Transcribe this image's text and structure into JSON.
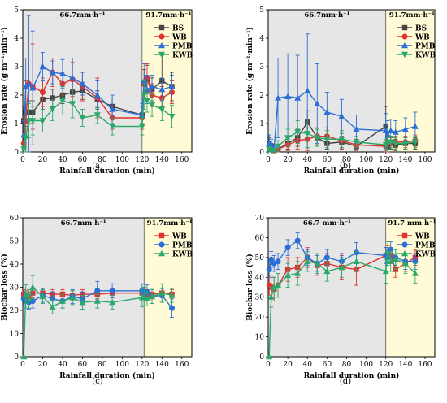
{
  "colors": {
    "BS": "#444444",
    "WB": "#e0322f",
    "PMB": "#2b6fd6",
    "KWB": "#2aa86a",
    "shade1": "#e6e6e6",
    "shade2": "#fffbd6"
  },
  "chart_data": [
    {
      "panel_label": "(a)",
      "type": "line",
      "xlabel": "Rainfall duration (min)",
      "ylabel": "Erosion rate (g·m⁻²·min⁻¹)",
      "xlim": [
        0,
        170
      ],
      "ylim": [
        0,
        5
      ],
      "xticks": [
        0,
        20,
        40,
        60,
        80,
        100,
        120,
        140,
        160
      ],
      "yticks": [
        0,
        1,
        2,
        3,
        4,
        5
      ],
      "phase_split": 120,
      "intensity_labels": [
        "66.7mm·h⁻¹",
        "91.7mm·h⁻¹"
      ],
      "legend": "top-right",
      "series": [
        {
          "name": "BS",
          "marker": "square",
          "x": [
            1,
            3,
            6,
            10,
            20,
            30,
            40,
            50,
            60,
            75,
            90,
            120,
            122,
            125,
            130,
            140,
            150
          ],
          "y": [
            1.1,
            1.4,
            1.4,
            1.4,
            1.85,
            1.9,
            2.0,
            2.1,
            2.15,
            1.85,
            1.6,
            1.3,
            2.4,
            2.55,
            2.2,
            2.5,
            2.3
          ],
          "err": [
            0.5,
            0.5,
            0.4,
            0.4,
            0.35,
            0.3,
            0.3,
            0.4,
            0.3,
            0.3,
            0.3,
            0.3,
            0.5,
            0.5,
            0.4,
            0.9,
            0.5
          ]
        },
        {
          "name": "WB",
          "marker": "circle",
          "x": [
            1,
            3,
            6,
            10,
            20,
            30,
            40,
            50,
            60,
            75,
            90,
            120,
            122,
            125,
            130,
            140,
            150
          ],
          "y": [
            0.3,
            1.1,
            2.4,
            2.3,
            2.1,
            2.8,
            2.4,
            2.55,
            2.3,
            1.9,
            1.2,
            1.2,
            2.4,
            2.6,
            2.0,
            1.9,
            2.1
          ],
          "err": [
            0.3,
            1.4,
            2.4,
            1.5,
            0.5,
            0.5,
            0.4,
            0.6,
            0.5,
            0.7,
            0.4,
            0.4,
            0.5,
            0.5,
            0.4,
            0.4,
            0.4
          ]
        },
        {
          "name": "PMB",
          "marker": "triangle",
          "x": [
            1,
            3,
            6,
            10,
            20,
            30,
            40,
            50,
            60,
            75,
            90,
            120,
            122,
            125,
            130,
            140,
            150
          ],
          "y": [
            0.6,
            2.3,
            2.4,
            2.25,
            3.0,
            2.8,
            2.75,
            2.6,
            2.4,
            2.0,
            1.5,
            1.3,
            2.5,
            2.2,
            2.3,
            2.2,
            2.3
          ],
          "err": [
            0.5,
            1.0,
            2.4,
            2.0,
            0.5,
            0.4,
            0.5,
            0.7,
            0.4,
            0.5,
            0.5,
            0.4,
            0.6,
            0.5,
            0.4,
            0.4,
            0.4
          ]
        },
        {
          "name": "KWB",
          "marker": "triangle-down",
          "x": [
            1,
            3,
            6,
            10,
            20,
            30,
            40,
            50,
            60,
            75,
            90,
            120,
            122,
            125,
            130,
            140,
            150
          ],
          "y": [
            0.1,
            0.5,
            1.1,
            1.1,
            1.1,
            1.5,
            1.8,
            1.7,
            1.2,
            1.3,
            0.9,
            0.9,
            2.0,
            1.8,
            1.65,
            1.5,
            1.25
          ],
          "err": [
            0.1,
            0.5,
            0.6,
            0.5,
            0.4,
            0.4,
            0.5,
            0.5,
            0.3,
            0.3,
            0.3,
            0.3,
            0.5,
            0.4,
            0.4,
            0.4,
            0.4
          ]
        }
      ]
    },
    {
      "panel_label": "(b)",
      "type": "line",
      "xlabel": "Rainfall duration (min)",
      "ylabel": "Erosion rate (g·m⁻²·min⁻¹)",
      "xlim": [
        0,
        170
      ],
      "ylim": [
        0,
        5
      ],
      "xticks": [
        0,
        20,
        40,
        60,
        80,
        100,
        120,
        140,
        160
      ],
      "yticks": [
        0,
        1,
        2,
        3,
        4,
        5
      ],
      "phase_split": 120,
      "intensity_labels": [
        "66.7mm·h⁻¹",
        "91.7mm·h⁻¹"
      ],
      "legend": "top-right",
      "series": [
        {
          "name": "BS",
          "marker": "square",
          "x": [
            1,
            3,
            6,
            10,
            20,
            30,
            40,
            50,
            60,
            75,
            90,
            120,
            122,
            125,
            130,
            140,
            150
          ],
          "y": [
            0.3,
            0.2,
            0.05,
            0.1,
            0.3,
            0.5,
            1.05,
            0.5,
            0.3,
            0.35,
            0.2,
            0.9,
            0.2,
            0.3,
            0.25,
            0.3,
            0.3
          ],
          "err": [
            0.2,
            0.1,
            0.05,
            0.1,
            0.2,
            0.3,
            0.4,
            0.3,
            0.2,
            0.2,
            0.1,
            0.7,
            0.2,
            0.2,
            0.2,
            0.2,
            0.2
          ]
        },
        {
          "name": "WB",
          "marker": "circle",
          "x": [
            1,
            3,
            6,
            10,
            20,
            30,
            40,
            50,
            60,
            75,
            90,
            120,
            122,
            125,
            130,
            140,
            150
          ],
          "y": [
            0.2,
            0.1,
            0.05,
            0.1,
            0.25,
            0.4,
            0.45,
            0.55,
            0.55,
            0.4,
            0.25,
            0.2,
            0.3,
            0.35,
            0.35,
            0.35,
            0.4
          ],
          "err": [
            0.1,
            0.1,
            0.05,
            0.1,
            0.2,
            0.3,
            0.4,
            0.3,
            0.3,
            0.3,
            0.2,
            0.2,
            0.2,
            0.2,
            0.2,
            0.2,
            0.2
          ]
        },
        {
          "name": "PMB",
          "marker": "triangle",
          "x": [
            1,
            3,
            6,
            10,
            20,
            30,
            40,
            50,
            60,
            75,
            90,
            120,
            122,
            125,
            130,
            140,
            150
          ],
          "y": [
            0.3,
            0.25,
            0.1,
            1.9,
            1.95,
            1.9,
            2.15,
            1.7,
            1.4,
            1.25,
            0.8,
            0.75,
            0.6,
            0.75,
            0.7,
            0.8,
            0.9
          ],
          "err": [
            0.3,
            0.2,
            0.1,
            1.4,
            1.5,
            1.5,
            2.0,
            1.4,
            0.7,
            0.6,
            0.5,
            0.6,
            0.5,
            0.4,
            0.4,
            0.4,
            0.5
          ]
        },
        {
          "name": "KWB",
          "marker": "triangle-down",
          "x": [
            1,
            3,
            6,
            10,
            20,
            30,
            40,
            50,
            60,
            75,
            90,
            120,
            122,
            125,
            130,
            140,
            150
          ],
          "y": [
            0.1,
            0.05,
            0.05,
            0.2,
            0.5,
            0.7,
            0.65,
            0.5,
            0.45,
            0.45,
            0.35,
            0.25,
            0.3,
            0.35,
            0.3,
            0.3,
            0.35
          ],
          "err": [
            0.1,
            0.05,
            0.05,
            0.2,
            0.3,
            0.4,
            0.5,
            0.3,
            0.3,
            0.3,
            0.2,
            0.2,
            0.2,
            0.2,
            0.2,
            0.2,
            0.2
          ]
        }
      ]
    },
    {
      "panel_label": "(c)",
      "type": "line",
      "xlabel": "Rainfall duration (min)",
      "ylabel": "Biochar loss (%)",
      "xlim": [
        0,
        170
      ],
      "ylim": [
        0,
        60
      ],
      "xticks": [
        0,
        20,
        40,
        60,
        80,
        100,
        120,
        140,
        160
      ],
      "yticks": [
        0,
        10,
        20,
        30,
        40,
        50,
        60
      ],
      "phase_split": 122,
      "intensity_labels": [
        "66.7mm·h⁻¹",
        "91.7mm·h⁻¹"
      ],
      "legend": "top-right",
      "series": [
        {
          "name": "WB",
          "marker": "square",
          "x": [
            1,
            3,
            6,
            10,
            20,
            30,
            40,
            50,
            60,
            75,
            90,
            120,
            122,
            125,
            130,
            140,
            150
          ],
          "y": [
            27,
            26.5,
            26,
            27.5,
            27.5,
            27,
            27,
            26.5,
            27,
            27,
            27.5,
            27.5,
            27.5,
            27,
            27,
            27.5,
            27
          ],
          "err": [
            2,
            2,
            2,
            2,
            2,
            2,
            2,
            2,
            2,
            2,
            2,
            2,
            2,
            2,
            2,
            2,
            2
          ]
        },
        {
          "name": "PMB",
          "marker": "circle",
          "x": [
            1,
            3,
            6,
            10,
            20,
            30,
            40,
            50,
            60,
            75,
            90,
            120,
            122,
            125,
            130,
            140,
            150
          ],
          "y": [
            25,
            24,
            23.5,
            24,
            26.5,
            25,
            24,
            26,
            25,
            28.5,
            28.5,
            28.5,
            27,
            28,
            26,
            26.5,
            21
          ],
          "err": [
            3,
            3,
            3,
            3,
            3,
            3,
            3,
            3,
            3,
            4,
            3,
            3,
            3,
            3,
            3,
            3,
            4
          ]
        },
        {
          "name": "KWB",
          "marker": "triangle",
          "x": [
            1,
            3,
            6,
            10,
            20,
            30,
            40,
            50,
            60,
            75,
            90,
            120,
            122,
            125,
            130,
            140,
            150
          ],
          "y": [
            0,
            27,
            25,
            30,
            26,
            21.5,
            24,
            25.5,
            23.5,
            24,
            23.5,
            25.5,
            26,
            25,
            26,
            27.5,
            26.5
          ],
          "err": [
            0,
            4,
            4,
            5,
            3,
            3,
            3,
            3,
            3,
            3,
            3,
            4,
            4,
            3,
            3,
            4,
            3
          ]
        }
      ]
    },
    {
      "panel_label": "(d)",
      "type": "line",
      "xlabel": "Rainfall duration (min)",
      "ylabel": "Biochar loss (%)",
      "xlim": [
        0,
        170
      ],
      "ylim": [
        0,
        70
      ],
      "xticks": [
        0,
        20,
        40,
        60,
        80,
        100,
        120,
        140,
        160
      ],
      "yticks": [
        0,
        10,
        20,
        30,
        40,
        50,
        60,
        70
      ],
      "phase_split": 120,
      "intensity_labels": [
        "66.7 mm·h⁻¹",
        "91.7 mm·h⁻¹"
      ],
      "legend": "top-right",
      "series": [
        {
          "name": "WB",
          "marker": "square",
          "x": [
            1,
            3,
            6,
            10,
            20,
            30,
            40,
            50,
            60,
            75,
            90,
            120,
            122,
            125,
            130,
            140,
            150
          ],
          "y": [
            36,
            35,
            34,
            36,
            44,
            45,
            50,
            46,
            47,
            45,
            44,
            51,
            52,
            51,
            44,
            47,
            50
          ],
          "err": [
            5,
            5,
            6,
            6,
            6,
            5,
            5,
            5,
            5,
            6,
            8,
            4,
            4,
            4,
            4,
            4,
            4
          ]
        },
        {
          "name": "PMB",
          "marker": "circle",
          "x": [
            1,
            3,
            6,
            10,
            20,
            30,
            40,
            50,
            60,
            75,
            90,
            120,
            122,
            125,
            130,
            140,
            150
          ],
          "y": [
            44,
            49,
            47,
            48,
            55,
            58.5,
            50,
            47,
            50,
            48,
            52.5,
            51,
            50,
            54,
            50,
            48,
            48
          ],
          "err": [
            4,
            4,
            4,
            4,
            4,
            4,
            4,
            4,
            4,
            4,
            5,
            4,
            4,
            4,
            4,
            4,
            4
          ]
        },
        {
          "name": "KWB",
          "marker": "triangle",
          "x": [
            1,
            3,
            6,
            10,
            20,
            30,
            40,
            50,
            60,
            75,
            90,
            120,
            122,
            125,
            130,
            140,
            150
          ],
          "y": [
            0,
            30,
            35,
            36,
            41,
            42,
            48,
            47,
            43,
            45,
            48,
            43,
            53,
            48,
            49,
            47,
            42
          ],
          "err": [
            0,
            5,
            5,
            6,
            6,
            6,
            5,
            5,
            5,
            5,
            5,
            6,
            5,
            5,
            5,
            5,
            5
          ]
        }
      ]
    }
  ]
}
